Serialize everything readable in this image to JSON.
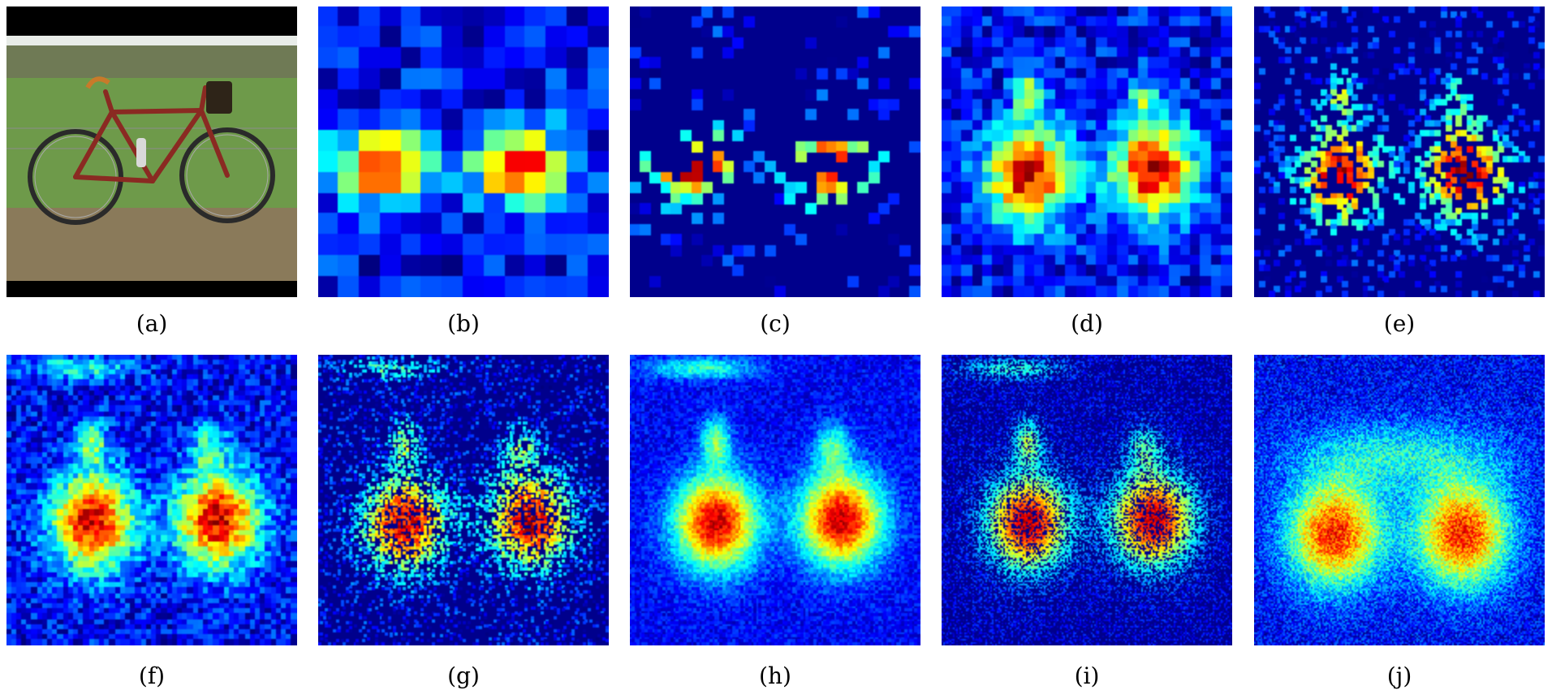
{
  "figure": {
    "captions": [
      "(a)",
      "(b)",
      "(c)",
      "(d)",
      "(e)",
      "(f)",
      "(g)",
      "(h)",
      "(i)",
      "(j)"
    ],
    "photo_icon": "bicycle-photo",
    "colormap": "jet",
    "panels": [
      {
        "id": "b",
        "grid": 14,
        "sparse": 0.0,
        "style": "coarse"
      },
      {
        "id": "c",
        "grid": 28,
        "sparse": 0.62,
        "style": "coarse"
      },
      {
        "id": "d",
        "grid": 28,
        "sparse": 0.0,
        "style": "medium"
      },
      {
        "id": "e",
        "grid": 56,
        "sparse": 0.55,
        "style": "medium"
      },
      {
        "id": "f",
        "grid": 56,
        "sparse": 0.0,
        "style": "smooth"
      },
      {
        "id": "g",
        "grid": 112,
        "sparse": 0.5,
        "style": "smooth"
      },
      {
        "id": "h",
        "grid": 112,
        "sparse": 0.0,
        "style": "fine"
      },
      {
        "id": "i",
        "grid": 224,
        "sparse": 0.45,
        "style": "fine"
      },
      {
        "id": "j",
        "grid": 224,
        "sparse": 0.0,
        "style": "diffuse"
      }
    ]
  }
}
